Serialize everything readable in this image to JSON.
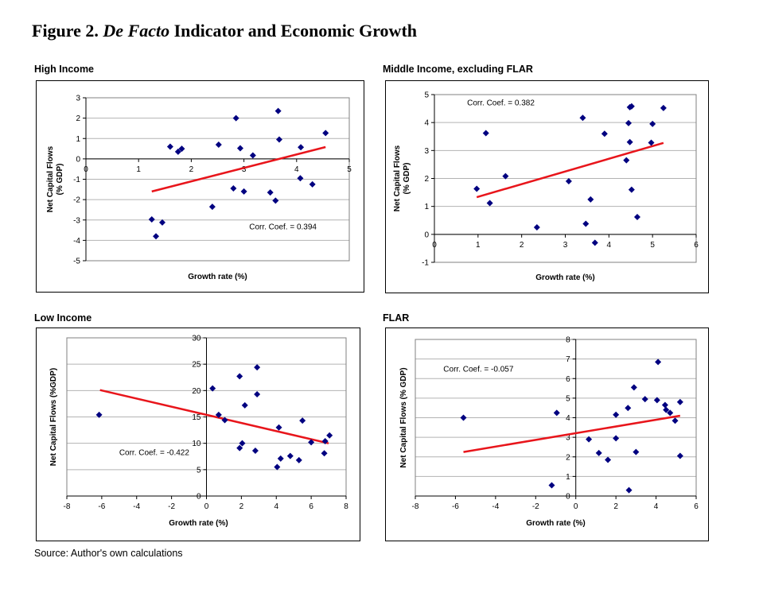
{
  "figure": {
    "title_prefix": "Figure 2. ",
    "title_italic": "De Facto",
    "title_suffix": " Indicator and Economic Growth",
    "source": "Source: Author's own calculations"
  },
  "colors": {
    "marker": "#000080",
    "trendline": "#e8151b",
    "gridline": "#b3b3b3",
    "plot_border": "#808080"
  },
  "chart_data": [
    {
      "id": "high-income",
      "type": "scatter",
      "title": "High Income",
      "xlabel": "Growth rate (%)",
      "ylabel_lines": [
        "Net Capital Flows",
        "(% GDP)"
      ],
      "xlim": [
        0,
        5
      ],
      "ylim": [
        -5,
        3
      ],
      "xticks": [
        0,
        1,
        2,
        3,
        4,
        5
      ],
      "yticks": [
        -5,
        -4,
        -3,
        -2,
        -1,
        0,
        1,
        2,
        3
      ],
      "grid": "horizontal",
      "annotation": "Corr. Coef. = 0.394",
      "annotation_pos": [
        3.1,
        -3.45
      ],
      "points": [
        [
          1.6,
          0.6
        ],
        [
          1.75,
          0.35
        ],
        [
          1.82,
          0.5
        ],
        [
          2.52,
          0.7
        ],
        [
          2.85,
          2.0
        ],
        [
          2.93,
          0.52
        ],
        [
          3.17,
          0.17
        ],
        [
          3.65,
          2.35
        ],
        [
          3.67,
          0.95
        ],
        [
          4.08,
          0.57
        ],
        [
          4.55,
          1.27
        ],
        [
          4.07,
          -0.95
        ],
        [
          4.3,
          -1.25
        ],
        [
          2.8,
          -1.45
        ],
        [
          3.0,
          -1.6
        ],
        [
          3.5,
          -1.65
        ],
        [
          3.6,
          -2.05
        ],
        [
          2.4,
          -2.35
        ],
        [
          1.25,
          -2.97
        ],
        [
          1.45,
          -3.12
        ],
        [
          1.33,
          -3.8
        ]
      ],
      "trendline": [
        [
          1.25,
          -1.6
        ],
        [
          4.55,
          0.58
        ]
      ]
    },
    {
      "id": "middle-income",
      "type": "scatter",
      "title": "Middle Income, excluding FLAR",
      "xlabel": "Growth rate (%)",
      "ylabel_lines": [
        "Net Capital Flows",
        "(% GDP)"
      ],
      "xlim": [
        0,
        6
      ],
      "ylim": [
        -1,
        5
      ],
      "xticks": [
        0,
        1,
        2,
        3,
        4,
        5,
        6
      ],
      "yticks": [
        -1,
        0,
        1,
        2,
        3,
        4,
        5
      ],
      "grid": "horizontal",
      "annotation": "Corr. Coef. = 0.382",
      "annotation_pos": [
        0.75,
        4.62
      ],
      "points": [
        [
          0.97,
          1.63
        ],
        [
          1.18,
          3.62
        ],
        [
          1.27,
          1.12
        ],
        [
          1.63,
          2.08
        ],
        [
          2.35,
          0.25
        ],
        [
          3.08,
          1.9
        ],
        [
          3.4,
          4.17
        ],
        [
          3.47,
          0.38
        ],
        [
          3.58,
          1.25
        ],
        [
          3.68,
          -0.3
        ],
        [
          3.9,
          3.6
        ],
        [
          4.4,
          2.65
        ],
        [
          4.45,
          3.98
        ],
        [
          4.48,
          3.3
        ],
        [
          4.48,
          4.55
        ],
        [
          4.52,
          4.58
        ],
        [
          4.52,
          1.6
        ],
        [
          4.65,
          0.62
        ],
        [
          4.97,
          3.28
        ],
        [
          5.0,
          3.95
        ],
        [
          5.25,
          4.52
        ]
      ],
      "trendline": [
        [
          0.97,
          1.33
        ],
        [
          5.25,
          3.27
        ]
      ]
    },
    {
      "id": "low-income",
      "type": "scatter",
      "title": "Low Income",
      "xlabel": "Growth rate (%)",
      "ylabel_lines": [
        "Net Capital Flows (%GDP)"
      ],
      "xlim": [
        -8,
        8
      ],
      "ylim": [
        0,
        30
      ],
      "xticks": [
        -8,
        -6,
        -4,
        -2,
        0,
        2,
        4,
        6,
        8
      ],
      "yticks": [
        0,
        5,
        10,
        15,
        20,
        25,
        30
      ],
      "grid": "horizontal",
      "annotation": "Corr. Coef. = -0.422",
      "annotation_pos": [
        -5.0,
        7.8
      ],
      "points": [
        [
          -6.15,
          15.4
        ],
        [
          0.35,
          20.4
        ],
        [
          0.7,
          15.4
        ],
        [
          1.05,
          14.4
        ],
        [
          1.9,
          22.7
        ],
        [
          1.9,
          9.1
        ],
        [
          2.05,
          10.0
        ],
        [
          2.2,
          17.2
        ],
        [
          2.8,
          8.6
        ],
        [
          2.9,
          24.4
        ],
        [
          2.9,
          19.3
        ],
        [
          4.05,
          5.5
        ],
        [
          4.15,
          13.0
        ],
        [
          4.25,
          7.1
        ],
        [
          4.8,
          7.6
        ],
        [
          5.3,
          6.8
        ],
        [
          5.5,
          14.3
        ],
        [
          6.0,
          10.2
        ],
        [
          6.75,
          8.1
        ],
        [
          6.8,
          10.4
        ],
        [
          7.05,
          11.5
        ]
      ],
      "trendline": [
        [
          -6.1,
          20.1
        ],
        [
          7.0,
          10.0
        ]
      ]
    },
    {
      "id": "flar",
      "type": "scatter",
      "title": "FLAR",
      "xlabel": "Growth rate (%)",
      "ylabel_lines": [
        "Net Capital Flows (% GDP)"
      ],
      "xlim": [
        -8,
        6
      ],
      "ylim": [
        0,
        8
      ],
      "xticks": [
        -8,
        -6,
        -4,
        -2,
        0,
        2,
        4,
        6
      ],
      "yticks": [
        0,
        1,
        2,
        3,
        4,
        5,
        6,
        7,
        8
      ],
      "grid": "horizontal",
      "annotation": "Corr. Coef. = -0.057",
      "annotation_pos": [
        -6.6,
        6.35
      ],
      "points": [
        [
          -5.6,
          4.0
        ],
        [
          -1.2,
          0.55
        ],
        [
          -0.95,
          4.25
        ],
        [
          0.65,
          2.9
        ],
        [
          1.15,
          2.2
        ],
        [
          1.6,
          1.85
        ],
        [
          2.0,
          4.15
        ],
        [
          2.0,
          2.95
        ],
        [
          2.6,
          4.5
        ],
        [
          2.65,
          0.3
        ],
        [
          2.9,
          5.55
        ],
        [
          3.0,
          2.25
        ],
        [
          3.45,
          4.95
        ],
        [
          4.05,
          4.9
        ],
        [
          4.1,
          6.85
        ],
        [
          4.45,
          4.65
        ],
        [
          4.5,
          4.4
        ],
        [
          4.7,
          4.25
        ],
        [
          4.95,
          3.85
        ],
        [
          5.2,
          4.8
        ],
        [
          5.2,
          2.05
        ]
      ],
      "trendline": [
        [
          -5.6,
          2.25
        ],
        [
          5.2,
          4.1
        ]
      ]
    }
  ]
}
